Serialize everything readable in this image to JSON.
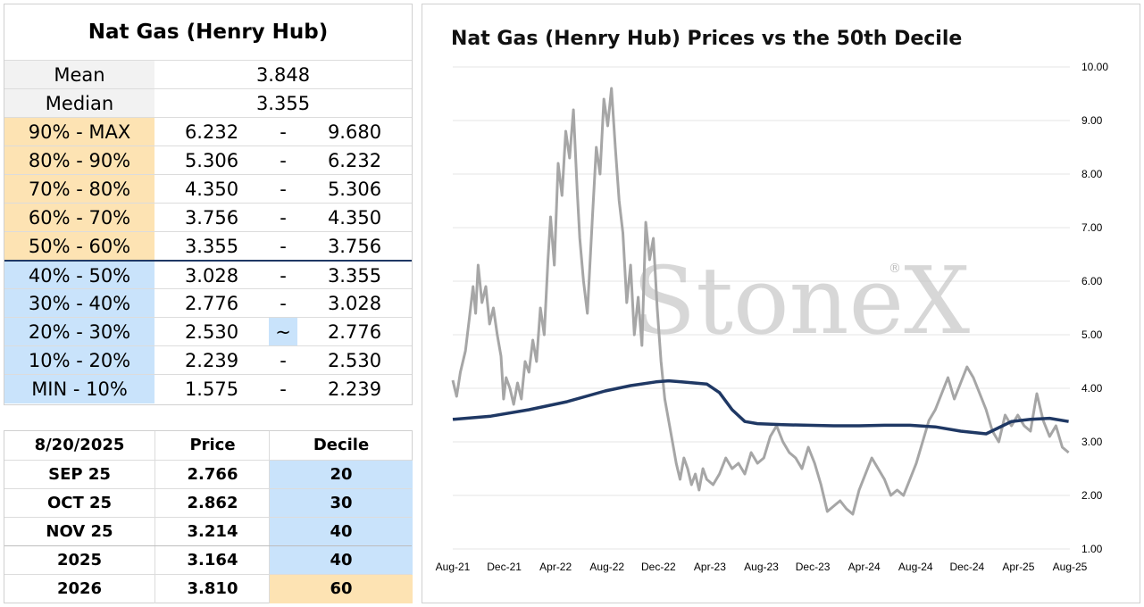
{
  "decile_table": {
    "title": "Nat Gas (Henry Hub)",
    "mean_label": "Mean",
    "mean_value": "3.848",
    "median_label": "Median",
    "median_value": "3.355",
    "rows": [
      {
        "label": "90% - MAX",
        "low": "6.232",
        "sep": "-",
        "high": "9.680",
        "color": "#fde3b3"
      },
      {
        "label": "80% - 90%",
        "low": "5.306",
        "sep": "-",
        "high": "6.232",
        "color": "#fde3b3"
      },
      {
        "label": "70% - 80%",
        "low": "4.350",
        "sep": "-",
        "high": "5.306",
        "color": "#fde3b3"
      },
      {
        "label": "60% - 70%",
        "low": "3.756",
        "sep": "-",
        "high": "4.350",
        "color": "#fde3b3"
      },
      {
        "label": "50% - 60%",
        "low": "3.355",
        "sep": "-",
        "high": "3.756",
        "color": "#fde3b3"
      },
      {
        "label": "40% - 50%",
        "low": "3.028",
        "sep": "-",
        "high": "3.355",
        "color": "#c9e3fb"
      },
      {
        "label": "30% - 40%",
        "low": "2.776",
        "sep": "-",
        "high": "3.028",
        "color": "#c9e3fb"
      },
      {
        "label": "20% - 30%",
        "low": "2.530",
        "sep": "~",
        "high": "2.776",
        "color": "#c9e3fb"
      },
      {
        "label": "10% - 20%",
        "low": "2.239",
        "sep": "-",
        "high": "2.530",
        "color": "#c9e3fb"
      },
      {
        "label": "MIN - 10%",
        "low": "1.575",
        "sep": "-",
        "high": "2.239",
        "color": "#c9e3fb"
      }
    ]
  },
  "price_table": {
    "header_date": "8/20/2025",
    "header_price": "Price",
    "header_decile": "Decile",
    "rows": [
      {
        "contract": "SEP 25",
        "price": "2.766",
        "decile": "20",
        "color": "#c9e3fb"
      },
      {
        "contract": "OCT 25",
        "price": "2.862",
        "decile": "30",
        "color": "#c9e3fb"
      },
      {
        "contract": "NOV 25",
        "price": "3.214",
        "decile": "40",
        "color": "#c9e3fb"
      },
      {
        "contract": "2025",
        "price": "3.164",
        "decile": "40",
        "color": "#c9e3fb"
      },
      {
        "contract": "2026",
        "price": "3.810",
        "decile": "60",
        "color": "#fde3b3"
      }
    ]
  },
  "chart_data": {
    "type": "line",
    "title": "Nat Gas (Henry Hub) Prices vs the 50th Decile",
    "watermark": "StoneX",
    "watermark_mark": "®",
    "x_ticks": [
      "Aug-21",
      "Dec-21",
      "Apr-22",
      "Aug-22",
      "Dec-22",
      "Apr-23",
      "Aug-23",
      "Dec-23",
      "Apr-24",
      "Aug-24",
      "Dec-24",
      "Apr-25",
      "Aug-25"
    ],
    "xlim": [
      0,
      48.6
    ],
    "ylim": [
      1.0,
      10.0
    ],
    "y_ticks": [
      "1.00",
      "2.00",
      "3.00",
      "4.00",
      "5.00",
      "6.00",
      "7.00",
      "8.00",
      "9.00",
      "10.00"
    ],
    "y_axis_side": "right",
    "grid": "horizontal",
    "series": [
      {
        "color": "#a6a6a6",
        "x": [
          0,
          0.3,
          0.6,
          1.0,
          1.3,
          1.6,
          1.8,
          2.0,
          2.3,
          2.6,
          2.9,
          3.2,
          3.5,
          3.8,
          4.0,
          4.2,
          4.5,
          4.8,
          5.1,
          5.4,
          5.7,
          6.0,
          6.3,
          6.6,
          6.9,
          7.2,
          7.5,
          7.7,
          8.0,
          8.3,
          8.6,
          8.9,
          9.2,
          9.5,
          9.8,
          10.0,
          10.3,
          10.6,
          11.0,
          11.3,
          11.6,
          11.9,
          12.2,
          12.5,
          12.8,
          13.1,
          13.4,
          13.7,
          14.0,
          14.3,
          14.6,
          14.9,
          15.2,
          15.5,
          15.8,
          16.1,
          16.4,
          16.7,
          17.0,
          17.3,
          17.6,
          17.9,
          18.2,
          18.5,
          18.8,
          19.1,
          19.4,
          19.7,
          20.0,
          20.5,
          21.0,
          21.5,
          22.0,
          22.5,
          23.0,
          23.5,
          24.0,
          24.5,
          25.0,
          25.5,
          26.0,
          26.5,
          27.0,
          27.5,
          28.0,
          28.5,
          29.0,
          29.5,
          30.0,
          30.5,
          31.0,
          31.5,
          32.0,
          32.5,
          33.0,
          33.5,
          34.0,
          34.5,
          35.0,
          35.5,
          36.0,
          36.5,
          37.0,
          37.5,
          38.0,
          38.5,
          39.0,
          39.5,
          40.0,
          40.5,
          41.0,
          41.5,
          42.0,
          42.5,
          43.0,
          43.5,
          44.0,
          44.5,
          45.0,
          45.5,
          46.0,
          46.5,
          47.0,
          47.5,
          48.0,
          48.5
        ],
        "values": [
          4.15,
          3.85,
          4.3,
          4.7,
          5.3,
          5.9,
          5.4,
          6.3,
          5.6,
          5.9,
          5.2,
          5.5,
          5.0,
          4.6,
          3.8,
          4.2,
          4.0,
          3.7,
          4.1,
          3.8,
          4.5,
          4.3,
          4.9,
          4.5,
          5.5,
          5.0,
          6.4,
          7.2,
          6.3,
          8.2,
          7.6,
          8.8,
          8.3,
          9.2,
          7.7,
          6.8,
          6.0,
          5.4,
          7.2,
          8.5,
          8.0,
          9.4,
          8.9,
          9.6,
          8.5,
          7.5,
          6.9,
          5.6,
          6.3,
          5.0,
          5.7,
          4.8,
          7.1,
          6.4,
          6.8,
          5.5,
          4.5,
          3.8,
          3.4,
          3.0,
          2.6,
          2.3,
          2.7,
          2.5,
          2.2,
          2.4,
          2.1,
          2.5,
          2.3,
          2.2,
          2.4,
          2.7,
          2.5,
          2.6,
          2.4,
          2.8,
          2.6,
          2.7,
          3.1,
          3.3,
          3.0,
          2.8,
          2.7,
          2.5,
          2.9,
          2.6,
          2.2,
          1.7,
          1.8,
          1.9,
          1.75,
          1.65,
          2.1,
          2.4,
          2.7,
          2.5,
          2.3,
          2.0,
          2.1,
          2.0,
          2.3,
          2.6,
          3.0,
          3.4,
          3.6,
          3.9,
          4.2,
          3.8,
          4.1,
          4.4,
          4.2,
          3.9,
          3.6,
          3.2,
          3.0,
          3.5,
          3.3,
          3.5,
          3.3,
          3.2,
          3.9,
          3.4,
          3.1,
          3.3,
          2.9,
          2.8
        ]
      },
      {
        "color": "#1f3864",
        "x": [
          0,
          3,
          6,
          9,
          12,
          14,
          16,
          17,
          18,
          19,
          20,
          21,
          22,
          23,
          24,
          26,
          28,
          30,
          32,
          34,
          36,
          38,
          40,
          42,
          44,
          45.5,
          47,
          48.5
        ],
        "values": [
          3.42,
          3.48,
          3.6,
          3.75,
          3.95,
          4.05,
          4.12,
          4.14,
          4.12,
          4.1,
          4.08,
          3.92,
          3.6,
          3.38,
          3.34,
          3.32,
          3.31,
          3.3,
          3.3,
          3.31,
          3.31,
          3.28,
          3.2,
          3.15,
          3.38,
          3.42,
          3.44,
          3.38
        ]
      }
    ]
  }
}
